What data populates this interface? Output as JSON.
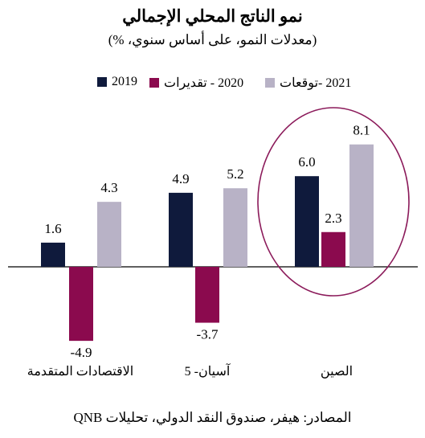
{
  "title": "نمو الناتج المحلي الإجمالي",
  "subtitle": "(معدلات النمو، على أساس سنوي، %)",
  "footer": "المصادر: هيفر، صندوق النقد الدولي، تحليلات QNB",
  "colors": {
    "s2019": "#0f1a3c",
    "s2020": "#8b0a4e",
    "s2021": "#b8b2c6",
    "circle": "#8b1a5a"
  },
  "chart_data": {
    "type": "bar",
    "title": "نمو الناتج المحلي الإجمالي",
    "subtitle": "(معدلات النمو، على أساس سنوي، %)",
    "categories": [
      "الاقتصادات المتقدمة",
      "آسيان- 5",
      "الصين"
    ],
    "series": [
      {
        "name": "2019",
        "values": [
          1.6,
          4.9,
          6.0
        ]
      },
      {
        "name": "2020 - تقديرات",
        "values": [
          -4.9,
          -3.7,
          2.3
        ]
      },
      {
        "name": "2021 -توقعات",
        "values": [
          4.3,
          5.2,
          8.1
        ]
      }
    ],
    "value_labels": [
      [
        "1.6",
        "4.9",
        "6.0"
      ],
      [
        "-4.9",
        "-3.7",
        "2.3"
      ],
      [
        "4.3",
        "5.2",
        "8.1"
      ]
    ],
    "highlight": "الصين",
    "ylim": [
      -5.5,
      8.5
    ],
    "grid": false,
    "legend_position": "top"
  }
}
